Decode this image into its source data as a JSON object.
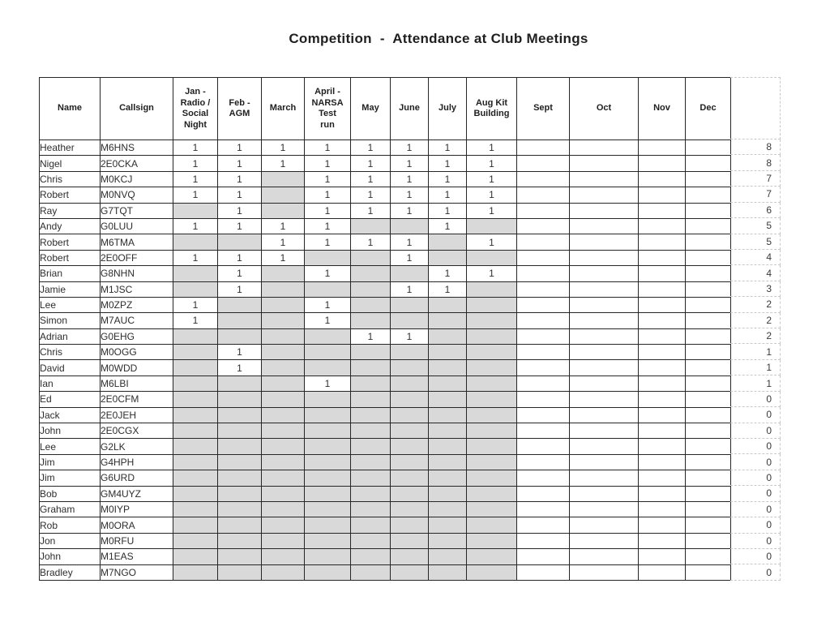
{
  "title": "Competition  -  Attendance at Club Meetings",
  "colors": {
    "shaded_cell": "#d9d9d9",
    "grid_border": "#262626",
    "dashed_guide": "#c9c9c9",
    "text": "#2e2e2e"
  },
  "table": {
    "columns": [
      "Name",
      "Callsign",
      "Jan -\nRadio /\nSocial\nNight",
      "Feb -\nAGM",
      "March",
      "April -\nNARSA\nTest\nrun",
      "May",
      "June",
      "July",
      "Aug  Kit\nBuilding",
      "Sept",
      "Oct",
      "Nov",
      "Dec"
    ],
    "month_cell_count": 8,
    "trailing_blank_months": [
      "Sept",
      "Oct",
      "Nov",
      "Dec"
    ],
    "rows": [
      {
        "name": "Heather",
        "callsign": "M6HNS",
        "months": [
          1,
          1,
          1,
          1,
          1,
          1,
          1,
          1
        ],
        "total": 8
      },
      {
        "name": "Nigel",
        "callsign": "2E0CKA",
        "months": [
          1,
          1,
          1,
          1,
          1,
          1,
          1,
          1
        ],
        "total": 8
      },
      {
        "name": "Chris",
        "callsign": "M0KCJ",
        "months": [
          1,
          1,
          null,
          1,
          1,
          1,
          1,
          1
        ],
        "total": 7
      },
      {
        "name": "Robert",
        "callsign": "M0NVQ",
        "months": [
          1,
          1,
          null,
          1,
          1,
          1,
          1,
          1
        ],
        "total": 7
      },
      {
        "name": "Ray",
        "callsign": "G7TQT",
        "months": [
          null,
          1,
          null,
          1,
          1,
          1,
          1,
          1
        ],
        "total": 6
      },
      {
        "name": "Andy",
        "callsign": "G0LUU",
        "months": [
          1,
          1,
          1,
          1,
          null,
          null,
          1,
          null
        ],
        "total": 5
      },
      {
        "name": "Robert",
        "callsign": "M6TMA",
        "months": [
          null,
          null,
          1,
          1,
          1,
          1,
          null,
          1
        ],
        "total": 5
      },
      {
        "name": "Robert",
        "callsign": "2E0OFF",
        "months": [
          1,
          1,
          1,
          null,
          null,
          1,
          null,
          null
        ],
        "total": 4
      },
      {
        "name": "Brian",
        "callsign": "G8NHN",
        "months": [
          null,
          1,
          null,
          1,
          null,
          null,
          1,
          1
        ],
        "total": 4
      },
      {
        "name": "Jamie",
        "callsign": "M1JSC",
        "months": [
          null,
          1,
          null,
          null,
          null,
          1,
          1,
          null
        ],
        "total": 3
      },
      {
        "name": "Lee",
        "callsign": "M0ZPZ",
        "months": [
          1,
          null,
          null,
          1,
          null,
          null,
          null,
          null
        ],
        "total": 2
      },
      {
        "name": "Simon",
        "callsign": "M7AUC",
        "months": [
          1,
          null,
          null,
          1,
          null,
          null,
          null,
          null
        ],
        "total": 2
      },
      {
        "name": "Adrian",
        "callsign": "G0EHG",
        "months": [
          null,
          null,
          null,
          null,
          1,
          1,
          null,
          null
        ],
        "total": 2
      },
      {
        "name": "Chris",
        "callsign": "M0OGG",
        "months": [
          null,
          1,
          null,
          null,
          null,
          null,
          null,
          null
        ],
        "total": 1
      },
      {
        "name": "David",
        "callsign": "M0WDD",
        "months": [
          null,
          1,
          null,
          null,
          null,
          null,
          null,
          null
        ],
        "total": 1
      },
      {
        "name": "Ian",
        "callsign": "M6LBI",
        "months": [
          null,
          null,
          null,
          1,
          null,
          null,
          null,
          null
        ],
        "total": 1
      },
      {
        "name": "Ed",
        "callsign": "2E0CFM",
        "months": [
          null,
          null,
          null,
          null,
          null,
          null,
          null,
          null
        ],
        "total": 0
      },
      {
        "name": "Jack",
        "callsign": "2E0JEH",
        "months": [
          null,
          null,
          null,
          null,
          null,
          null,
          null,
          null
        ],
        "total": 0
      },
      {
        "name": "John",
        "callsign": "2E0CGX",
        "months": [
          null,
          null,
          null,
          null,
          null,
          null,
          null,
          null
        ],
        "total": 0
      },
      {
        "name": "Lee",
        "callsign": "G2LK",
        "months": [
          null,
          null,
          null,
          null,
          null,
          null,
          null,
          null
        ],
        "total": 0
      },
      {
        "name": "Jim",
        "callsign": "G4HPH",
        "months": [
          null,
          null,
          null,
          null,
          null,
          null,
          null,
          null
        ],
        "total": 0
      },
      {
        "name": "Jim",
        "callsign": "G6URD",
        "months": [
          null,
          null,
          null,
          null,
          null,
          null,
          null,
          null
        ],
        "total": 0
      },
      {
        "name": "Bob",
        "callsign": "GM4UYZ",
        "months": [
          null,
          null,
          null,
          null,
          null,
          null,
          null,
          null
        ],
        "total": 0
      },
      {
        "name": "Graham",
        "callsign": "M0IYP",
        "months": [
          null,
          null,
          null,
          null,
          null,
          null,
          null,
          null
        ],
        "total": 0
      },
      {
        "name": "Rob",
        "callsign": "M0ORA",
        "months": [
          null,
          null,
          null,
          null,
          null,
          null,
          null,
          null
        ],
        "total": 0
      },
      {
        "name": "Jon",
        "callsign": "M0RFU",
        "months": [
          null,
          null,
          null,
          null,
          null,
          null,
          null,
          null
        ],
        "total": 0
      },
      {
        "name": "John",
        "callsign": "M1EAS",
        "months": [
          null,
          null,
          null,
          null,
          null,
          null,
          null,
          null
        ],
        "total": 0
      },
      {
        "name": "Bradley",
        "callsign": "M7NGO",
        "months": [
          null,
          null,
          null,
          null,
          null,
          null,
          null,
          null
        ],
        "total": 0
      }
    ]
  }
}
